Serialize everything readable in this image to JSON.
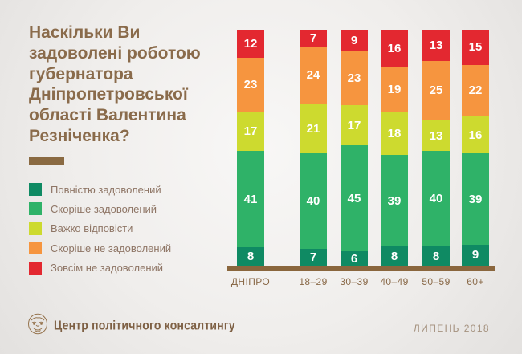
{
  "title": "Наскільки Ви задоволені роботою губернатора Дніпропетровської області Валентина Резніченка?",
  "footer": {
    "org_name": "Центр політичного консалтингу",
    "date": "ЛИПЕНЬ 2018"
  },
  "colors": {
    "title_brown": "#8a6b4b",
    "axis_brown": "#8a663d",
    "legend_text": "#8e7565",
    "value_text": "#ffffff",
    "background_center": "#f8f7f6",
    "background_edge": "#e3e1df"
  },
  "chart_data": {
    "type": "bar",
    "stacked": true,
    "unit": "percent",
    "title": "Наскільки Ви задоволені роботою губернатора Дніпропетровської області Валентина Резніченка?",
    "categories": [
      "ДНІПРО",
      "18–29",
      "30–39",
      "40–49",
      "50–59",
      "60+"
    ],
    "series": [
      {
        "name": "Повністю задоволений",
        "color": "#0f8a63",
        "values": [
          8,
          7,
          6,
          8,
          8,
          9
        ]
      },
      {
        "name": "Скоріше задоволений",
        "color": "#2fb268",
        "values": [
          41,
          40,
          45,
          39,
          40,
          39
        ]
      },
      {
        "name": "Важко відповісти",
        "color": "#cdda2f",
        "values": [
          17,
          21,
          17,
          18,
          13,
          16
        ]
      },
      {
        "name": "Скоріше не задоволений",
        "color": "#f6953f",
        "values": [
          23,
          24,
          23,
          19,
          25,
          22
        ]
      },
      {
        "name": "Зовсім не задоволений",
        "color": "#e32830",
        "values": [
          12,
          7,
          9,
          16,
          13,
          15
        ]
      }
    ],
    "legend_position": "left",
    "value_labels": "inside",
    "grid": false
  }
}
